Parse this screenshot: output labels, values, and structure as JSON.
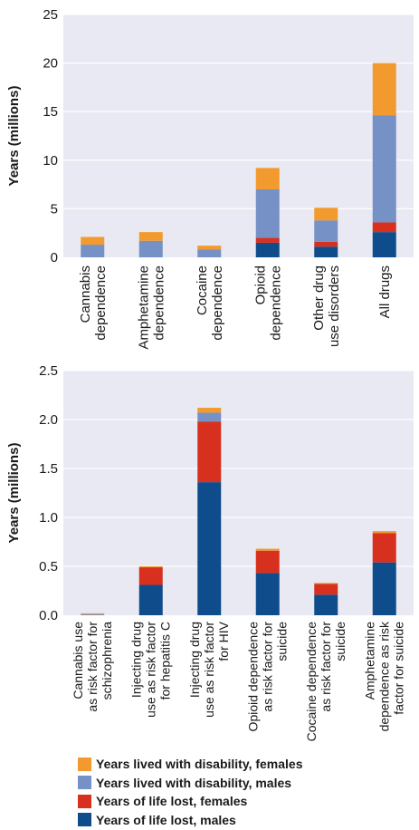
{
  "chart_data": [
    {
      "type": "bar",
      "stacked": true,
      "ylabel": "Years (millions)",
      "ylim": [
        0,
        25
      ],
      "yticks": [
        "0",
        "5",
        "10",
        "15",
        "20",
        "25"
      ],
      "grid": true,
      "categories": [
        [
          "Cannabis",
          "dependence"
        ],
        [
          "Amphetamine",
          "dependence"
        ],
        [
          "Cocaine",
          "dependence"
        ],
        [
          "Opioid",
          "dependence"
        ],
        [
          "Other drug",
          "use disorders"
        ],
        [
          "All drugs"
        ]
      ],
      "series": [
        {
          "name": "Years of life lost, males",
          "values": [
            0.0,
            0.0,
            0.0,
            1.5,
            1.1,
            2.6
          ]
        },
        {
          "name": "Years of life lost, females",
          "values": [
            0.0,
            0.0,
            0.0,
            0.5,
            0.5,
            1.0
          ]
        },
        {
          "name": "Years lived with disability, males",
          "values": [
            1.3,
            1.7,
            0.8,
            5.0,
            2.2,
            11.0
          ]
        },
        {
          "name": "Years lived with disability, females",
          "values": [
            0.8,
            0.9,
            0.4,
            2.2,
            1.3,
            5.4
          ]
        }
      ]
    },
    {
      "type": "bar",
      "stacked": true,
      "ylabel": "Years (millions)",
      "ylim": [
        0,
        2.5
      ],
      "yticks": [
        "0.0",
        "0.5",
        "1.0",
        "1.5",
        "2.0",
        "2.5"
      ],
      "grid": true,
      "categories": [
        [
          "Cannabis use",
          "as risk factor for",
          "schizophrenia"
        ],
        [
          "Injecting drug",
          "use as risk factor",
          "for hepatitis C"
        ],
        [
          "Injecting drug",
          "use as risk factor",
          "for HIV"
        ],
        [
          "Opioid dependence",
          "as risk factor for",
          "suicide"
        ],
        [
          "Cocaine dependence",
          "as risk factor for",
          "suicide"
        ],
        [
          "Amphetamine",
          "dependence as risk",
          "factor for suicide"
        ]
      ],
      "series": [
        {
          "name": "Years of life lost, males",
          "values": [
            0.0,
            0.31,
            1.36,
            0.43,
            0.21,
            0.54
          ]
        },
        {
          "name": "Years of life lost, females",
          "values": [
            0.0,
            0.18,
            0.62,
            0.23,
            0.11,
            0.3
          ]
        },
        {
          "name": "Years lived with disability, males",
          "values": [
            0.01,
            0.0,
            0.09,
            0.0,
            0.0,
            0.0
          ]
        },
        {
          "name": "Years lived with disability, females",
          "values": [
            0.01,
            0.01,
            0.05,
            0.02,
            0.01,
            0.02
          ]
        }
      ]
    }
  ],
  "colors": {
    "Years of life lost, males": "#0f4c8c",
    "Years of life lost, females": "#d7301f",
    "Years lived with disability, males": "#7591c5",
    "Years lived with disability, females": "#f39a2e",
    "plot_background": "#e8e9f3",
    "grid": "#ffffff"
  },
  "legend": [
    {
      "label": "Years lived with disability, females",
      "color": "#f39a2e"
    },
    {
      "label": "Years lived with disability, males",
      "color": "#7591c5"
    },
    {
      "label": "Years of life lost, females",
      "color": "#d7301f"
    },
    {
      "label": "Years of life lost, males",
      "color": "#0f4c8c"
    }
  ]
}
